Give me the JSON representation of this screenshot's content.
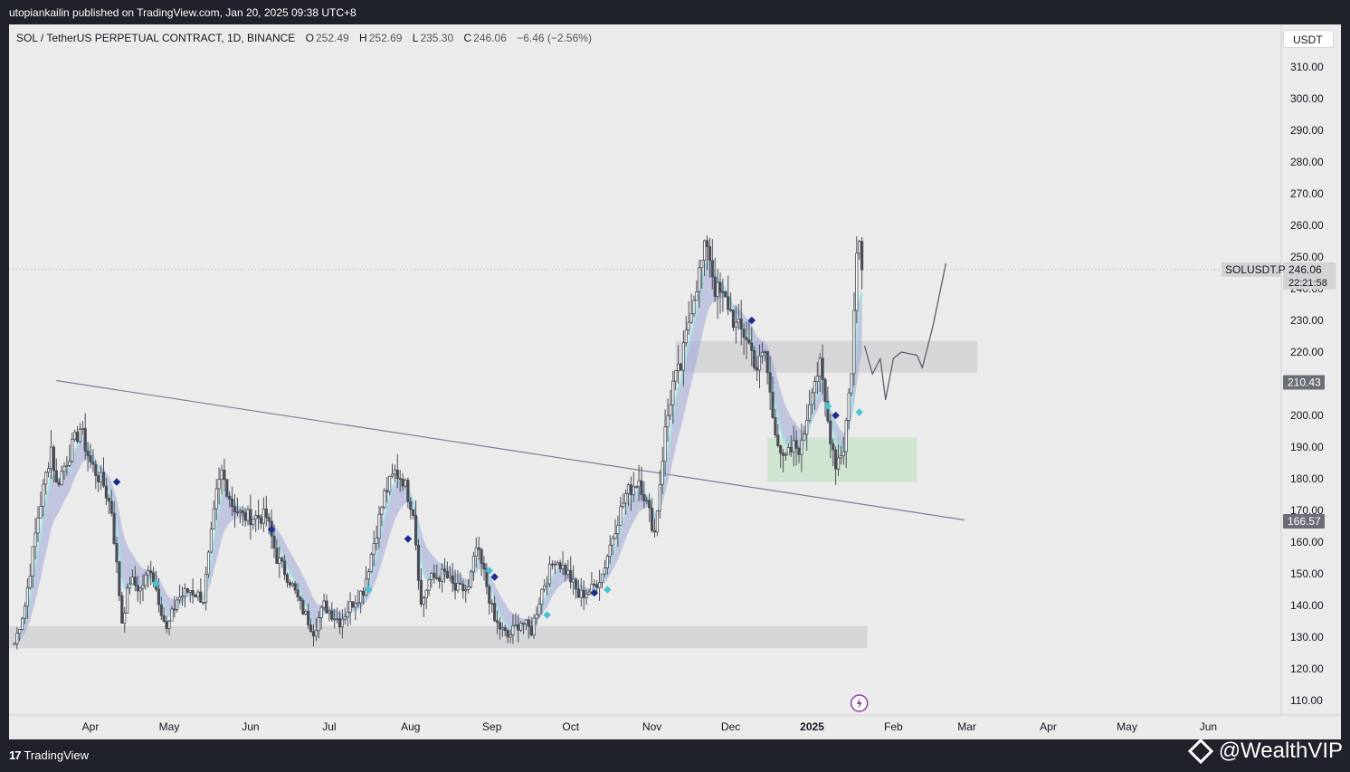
{
  "header": {
    "published_text": "utopiankailin published on TradingView.com, Jan 20, 2025 09:38 UTC+8"
  },
  "legend": {
    "symbol": "SOL / TetherUS PERPETUAL CONTRACT, 1D, BINANCE",
    "open_label": "O",
    "open": "252.49",
    "high_label": "H",
    "high": "252.69",
    "low_label": "L",
    "low": "235.30",
    "close_label": "C",
    "close": "246.06",
    "change": "−6.46 (−2.56%)"
  },
  "currency": "USDT",
  "footer": {
    "brand": "TradingView",
    "brand_logo": "tv-logo-icon",
    "watermark": "@WealthVIP",
    "watermark_icon": "binance-diamond-icon"
  },
  "colors": {
    "background": "#ebebeb",
    "frame": "#1f222b",
    "candle": "#4a4d57",
    "ribbon_purple": "#9fa6d6",
    "ribbon_cyan": "#a4dde5",
    "zone_gray": "#d5d5d8",
    "zone_green": "#cfe5cf",
    "marker_dark": "#1b2d8a",
    "marker_cyan": "#46c4cf",
    "lightning": "#8e3da8"
  },
  "chart_data": {
    "type": "candlestick",
    "timeframe": "1D",
    "yrange": [
      105,
      315
    ],
    "y_ticks": [
      110,
      120,
      130,
      140,
      150,
      160,
      170,
      180,
      190,
      200,
      210,
      220,
      230,
      240,
      250,
      260,
      270,
      280,
      290,
      300,
      310
    ],
    "y_tick_labels": [
      "110.00",
      "120.00",
      "130.00",
      "140.00",
      "150.00",
      "160.00",
      "170.00",
      "180.00",
      "190.00",
      "200.00",
      "210.00",
      "220.00",
      "230.00",
      "240.00",
      "250.00",
      "260.00",
      "270.00",
      "280.00",
      "290.00",
      "300.00",
      "310.00"
    ],
    "x_labels": [
      "Apr",
      "May",
      "Jun",
      "Jul",
      "Aug",
      "Sep",
      "Oct",
      "Nov",
      "Dec",
      "2025",
      "Feb",
      "Mar",
      "Apr",
      "May",
      "Jun"
    ],
    "x_label_dates": [
      "2024-04-01",
      "2024-05-01",
      "2024-06-01",
      "2024-07-01",
      "2024-08-01",
      "2024-09-01",
      "2024-10-01",
      "2024-11-01",
      "2024-12-01",
      "2025-01-01",
      "2025-02-01",
      "2025-03-01",
      "2025-04-01",
      "2025-05-01",
      "2025-06-01"
    ],
    "date_range": [
      "2024-03-03",
      "2025-06-17"
    ],
    "price_path": [
      [
        "2024-03-03",
        128
      ],
      [
        "2024-03-07",
        140
      ],
      [
        "2024-03-12",
        168
      ],
      [
        "2024-03-17",
        190
      ],
      [
        "2024-03-19",
        178
      ],
      [
        "2024-03-24",
        188
      ],
      [
        "2024-03-28",
        196
      ],
      [
        "2024-04-01",
        185
      ],
      [
        "2024-04-06",
        178
      ],
      [
        "2024-04-09",
        170
      ],
      [
        "2024-04-13",
        135
      ],
      [
        "2024-04-16",
        148
      ],
      [
        "2024-04-20",
        145
      ],
      [
        "2024-04-24",
        152
      ],
      [
        "2024-04-30",
        132
      ],
      [
        "2024-05-04",
        142
      ],
      [
        "2024-05-09",
        145
      ],
      [
        "2024-05-14",
        142
      ],
      [
        "2024-05-19",
        175
      ],
      [
        "2024-05-21",
        182
      ],
      [
        "2024-05-25",
        172
      ],
      [
        "2024-05-29",
        168
      ],
      [
        "2024-06-02",
        168
      ],
      [
        "2024-06-07",
        168
      ],
      [
        "2024-06-11",
        155
      ],
      [
        "2024-06-16",
        148
      ],
      [
        "2024-06-20",
        140
      ],
      [
        "2024-06-25",
        132
      ],
      [
        "2024-06-29",
        140
      ],
      [
        "2024-07-05",
        135
      ],
      [
        "2024-07-09",
        140
      ],
      [
        "2024-07-14",
        145
      ],
      [
        "2024-07-18",
        160
      ],
      [
        "2024-07-22",
        175
      ],
      [
        "2024-07-26",
        182
      ],
      [
        "2024-07-29",
        180
      ],
      [
        "2024-08-02",
        170
      ],
      [
        "2024-08-05",
        140
      ],
      [
        "2024-08-08",
        148
      ],
      [
        "2024-08-14",
        150
      ],
      [
        "2024-08-18",
        145
      ],
      [
        "2024-08-23",
        145
      ],
      [
        "2024-08-26",
        158
      ],
      [
        "2024-08-29",
        150
      ],
      [
        "2024-09-02",
        135
      ],
      [
        "2024-09-07",
        130
      ],
      [
        "2024-09-12",
        135
      ],
      [
        "2024-09-16",
        132
      ],
      [
        "2024-09-20",
        145
      ],
      [
        "2024-09-25",
        155
      ],
      [
        "2024-09-30",
        150
      ],
      [
        "2024-10-04",
        143
      ],
      [
        "2024-10-09",
        145
      ],
      [
        "2024-10-13",
        150
      ],
      [
        "2024-10-18",
        165
      ],
      [
        "2024-10-22",
        175
      ],
      [
        "2024-10-27",
        180
      ],
      [
        "2024-10-29",
        175
      ],
      [
        "2024-11-02",
        163
      ],
      [
        "2024-11-06",
        195
      ],
      [
        "2024-11-09",
        210
      ],
      [
        "2024-11-12",
        215
      ],
      [
        "2024-11-16",
        235
      ],
      [
        "2024-11-19",
        245
      ],
      [
        "2024-11-22",
        255
      ],
      [
        "2024-11-25",
        240
      ],
      [
        "2024-11-30",
        235
      ],
      [
        "2024-12-03",
        228
      ],
      [
        "2024-12-07",
        225
      ],
      [
        "2024-12-11",
        215
      ],
      [
        "2024-12-14",
        220
      ],
      [
        "2024-12-17",
        200
      ],
      [
        "2024-12-21",
        185
      ],
      [
        "2024-12-25",
        190
      ],
      [
        "2024-12-28",
        190
      ],
      [
        "2025-01-01",
        210
      ],
      [
        "2025-01-04",
        215
      ],
      [
        "2025-01-07",
        198
      ],
      [
        "2025-01-10",
        185
      ],
      [
        "2025-01-13",
        190
      ],
      [
        "2025-01-16",
        215
      ],
      [
        "2025-01-18",
        250
      ],
      [
        "2025-01-19",
        255
      ],
      [
        "2025-01-20",
        246
      ]
    ],
    "marker_path": [
      [
        "2025-01-21",
        222
      ],
      [
        "2025-01-24",
        213
      ],
      [
        "2025-01-27",
        218
      ],
      [
        "2025-01-29",
        205
      ],
      [
        "2025-02-01",
        218
      ],
      [
        "2025-02-04",
        220
      ],
      [
        "2025-02-10",
        219
      ],
      [
        "2025-02-12",
        215
      ],
      [
        "2025-02-16",
        228
      ],
      [
        "2025-02-21",
        248
      ]
    ],
    "trendline": [
      [
        "2024-03-19",
        211
      ],
      [
        "2025-02-28",
        167
      ]
    ],
    "zones": [
      {
        "from": "2024-03-01",
        "to": "2025-01-22",
        "y1": 126.5,
        "y2": 133.5,
        "color": "gray"
      },
      {
        "from": "2024-11-10",
        "to": "2025-03-05",
        "y1": 213.5,
        "y2": 223.5,
        "color": "gray"
      },
      {
        "from": "2024-12-15",
        "to": "2025-02-10",
        "y1": 179,
        "y2": 193,
        "color": "green"
      }
    ],
    "signals": [
      {
        "date": "2024-04-11",
        "y": 179,
        "kind": "dark"
      },
      {
        "date": "2024-04-26",
        "y": 147,
        "kind": "cyan"
      },
      {
        "date": "2024-06-09",
        "y": 164,
        "kind": "dark"
      },
      {
        "date": "2024-07-16",
        "y": 145,
        "kind": "cyan"
      },
      {
        "date": "2024-07-31",
        "y": 161,
        "kind": "dark"
      },
      {
        "date": "2024-08-31",
        "y": 151,
        "kind": "cyan"
      },
      {
        "date": "2024-09-02",
        "y": 149,
        "kind": "dark"
      },
      {
        "date": "2024-09-22",
        "y": 137,
        "kind": "cyan"
      },
      {
        "date": "2024-10-10",
        "y": 144,
        "kind": "dark"
      },
      {
        "date": "2024-10-15",
        "y": 145,
        "kind": "cyan"
      },
      {
        "date": "2024-12-09",
        "y": 230,
        "kind": "dark"
      },
      {
        "date": "2025-01-07",
        "y": 203,
        "kind": "cyan"
      },
      {
        "date": "2025-01-10",
        "y": 200,
        "kind": "dark"
      },
      {
        "date": "2025-01-19",
        "y": 201,
        "kind": "cyan"
      }
    ],
    "last_price_line": 246.06,
    "price_tags": [
      {
        "label": "246.06",
        "value": 246.06,
        "kind": "last"
      },
      {
        "label": "210.43",
        "value": 210.43,
        "kind": "level"
      },
      {
        "label": "166.57",
        "value": 166.57,
        "kind": "level"
      }
    ],
    "symbol_tag": {
      "label": "SOLUSDT.P",
      "countdown": "22:21:58"
    },
    "event_icon": {
      "name": "lightning-icon",
      "date": "2025-01-19"
    }
  }
}
